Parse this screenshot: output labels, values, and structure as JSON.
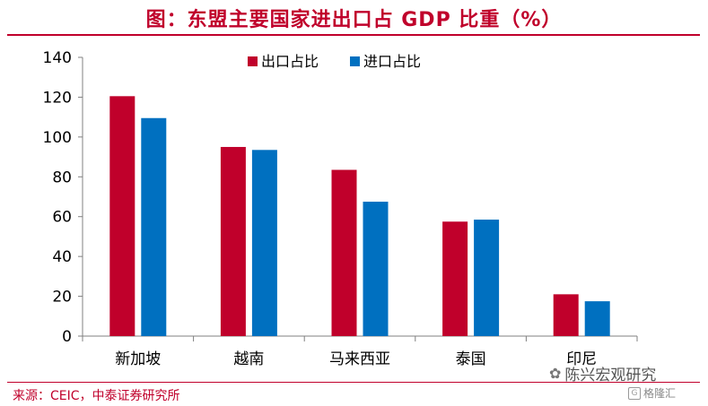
{
  "title": "图：东盟主要国家进出口占 GDP 比重（%）",
  "source": "来源：CEIC，中泰证券研究所",
  "watermark": {
    "main": "陈兴宏观研究",
    "sub": "格隆汇",
    "icon": "wechat-icon"
  },
  "colors": {
    "export": "#c0002b",
    "import": "#0070c0",
    "accent": "#c0002b"
  },
  "chart_data": {
    "type": "bar",
    "categories": [
      "新加坡",
      "越南",
      "马来西亚",
      "泰国",
      "印尼"
    ],
    "series": [
      {
        "name": "出口占比",
        "values": [
          120.5,
          95,
          83.5,
          57.5,
          21
        ]
      },
      {
        "name": "进口占比",
        "values": [
          109.5,
          93.5,
          67.5,
          58.5,
          17.5
        ]
      }
    ],
    "ylim": [
      0,
      140
    ],
    "yticks": [
      "0",
      "20",
      "40",
      "60",
      "80",
      "100",
      "120",
      "140"
    ],
    "legend_position": "top-center",
    "grid": false
  }
}
